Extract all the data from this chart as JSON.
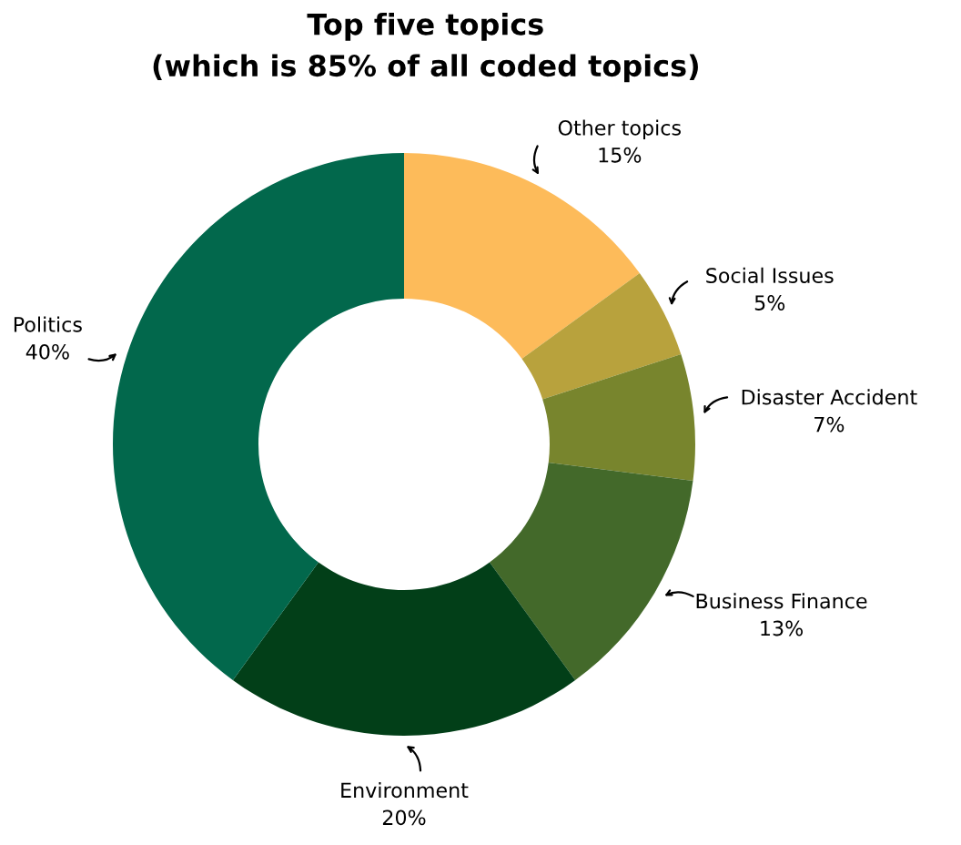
{
  "chart_data": {
    "type": "donut",
    "title": "Top five topics\n(which is 85% of all coded topics)",
    "categories": [
      "Other topics",
      "Social Issues",
      "Disaster Accident",
      "Business Finance",
      "Environment",
      "Politics"
    ],
    "values": [
      15,
      5,
      7,
      13,
      20,
      40
    ],
    "value_labels": [
      "15%",
      "5%",
      "7%",
      "13%",
      "20%",
      "40%"
    ],
    "colors": [
      "#fdbb5a",
      "#b8a23d",
      "#78852d",
      "#43692a",
      "#023f18",
      "#02684c"
    ],
    "legend": false
  }
}
